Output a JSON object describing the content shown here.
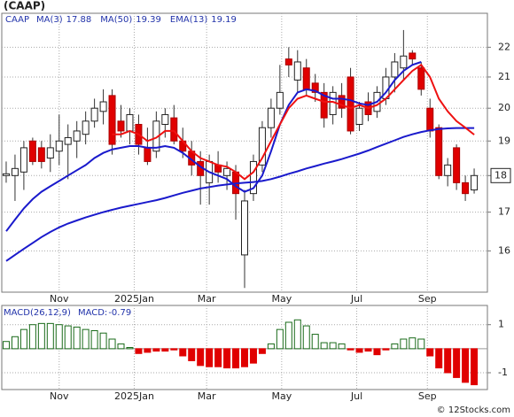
{
  "chart_data": [
    {
      "type": "candlestick",
      "title": "(CAAP)",
      "symbol": "CAAP",
      "log": true,
      "grid": true,
      "ylim": [
        15.0,
        23.2
      ],
      "yticks": [
        16,
        17,
        18,
        19,
        20,
        21,
        22
      ],
      "last_label": 18,
      "xlim": [
        -0.5,
        54.5
      ],
      "xticks": [
        {
          "value": 6,
          "label": "Nov"
        },
        {
          "value": 14.5,
          "label": "2025Jan"
        },
        {
          "value": 22.7,
          "label": "Mar"
        },
        {
          "value": 31.2,
          "label": "May"
        },
        {
          "value": 39.7,
          "label": "Jul"
        },
        {
          "value": 47.7,
          "label": "Sep"
        }
      ],
      "up_color": "#ffffff",
      "down_color": "#e00000",
      "open": [
        18.0,
        18.0,
        18.1,
        19.0,
        18.8,
        18.5,
        18.7,
        18.9,
        19.0,
        19.2,
        19.6,
        19.9,
        20.4,
        19.6,
        19.3,
        19.5,
        18.8,
        18.7,
        19.5,
        19.7,
        19.0,
        18.7,
        18.4,
        17.8,
        18.3,
        18.0,
        18.1,
        15.9,
        17.5,
        18.3,
        19.4,
        20.0,
        21.6,
        20.9,
        21.3,
        20.8,
        20.5,
        19.8,
        20.4,
        21.0,
        19.5,
        20.2,
        19.9,
        20.3,
        21.0,
        21.3,
        21.8,
        21.3,
        20.0,
        19.4,
        18.0,
        18.8,
        17.8,
        17.6
      ],
      "high": [
        18.4,
        18.6,
        19.0,
        19.1,
        19.0,
        19.2,
        19.8,
        19.5,
        19.6,
        19.9,
        20.3,
        20.6,
        20.6,
        20.1,
        20.0,
        19.8,
        19.4,
        19.9,
        20.0,
        20.1,
        19.4,
        19.0,
        18.7,
        18.6,
        18.7,
        18.4,
        18.3,
        17.6,
        18.6,
        19.6,
        20.3,
        21.4,
        22.0,
        21.9,
        21.6,
        21.1,
        20.8,
        20.7,
        20.8,
        21.3,
        20.2,
        20.5,
        20.7,
        21.3,
        21.8,
        22.6,
        21.9,
        21.5,
        20.3,
        19.5,
        18.5,
        18.9,
        18.0,
        18.2
      ],
      "low": [
        17.8,
        17.3,
        17.6,
        18.3,
        18.2,
        18.1,
        18.3,
        17.9,
        18.5,
        18.9,
        19.4,
        19.5,
        18.6,
        19.1,
        18.9,
        18.6,
        18.3,
        18.5,
        19.1,
        18.9,
        18.5,
        18.0,
        17.2,
        17.2,
        17.8,
        17.6,
        16.8,
        15.1,
        17.3,
        18.1,
        19.1,
        19.8,
        21.0,
        20.5,
        20.4,
        20.2,
        19.4,
        19.5,
        19.7,
        19.2,
        19.3,
        19.6,
        19.7,
        20.1,
        20.5,
        20.9,
        21.4,
        20.4,
        19.1,
        17.9,
        17.7,
        17.6,
        17.3,
        17.5
      ],
      "close": [
        18.05,
        18.2,
        18.8,
        18.4,
        18.4,
        18.8,
        19.0,
        19.1,
        19.3,
        19.6,
        20.0,
        20.2,
        18.9,
        19.3,
        19.8,
        18.9,
        18.4,
        19.6,
        19.8,
        19.0,
        18.7,
        18.3,
        18.0,
        18.4,
        18.1,
        18.2,
        17.5,
        17.3,
        18.4,
        19.4,
        20.0,
        20.5,
        21.4,
        21.5,
        20.6,
        20.5,
        19.7,
        20.5,
        20.0,
        19.3,
        20.0,
        19.8,
        20.5,
        21.0,
        21.5,
        21.7,
        21.6,
        20.6,
        19.3,
        18.0,
        18.3,
        17.8,
        17.5,
        18.0
      ],
      "series": [
        {
          "name": "MA(3)",
          "legend_value": 17.88,
          "color": "#1a1acc",
          "values": [
            16.5,
            16.8,
            17.1,
            17.35,
            17.55,
            17.7,
            17.85,
            18.0,
            18.15,
            18.3,
            18.5,
            18.65,
            18.75,
            18.8,
            18.85,
            18.85,
            18.8,
            18.8,
            18.85,
            18.8,
            18.65,
            18.45,
            18.25,
            18.1,
            18.0,
            17.9,
            17.7,
            17.55,
            17.65,
            18.0,
            18.7,
            19.5,
            20.1,
            20.5,
            20.6,
            20.55,
            20.4,
            20.3,
            20.3,
            20.25,
            20.15,
            20.1,
            20.2,
            20.5,
            20.9,
            21.2,
            21.4,
            21.5,
            null,
            null,
            null,
            null,
            null,
            null
          ]
        },
        {
          "name": "MA(50)",
          "legend_value": 19.39,
          "color": "#1a1acc",
          "values": [
            15.75,
            15.9,
            16.05,
            16.2,
            16.35,
            16.48,
            16.6,
            16.7,
            16.78,
            16.86,
            16.93,
            17.0,
            17.06,
            17.12,
            17.17,
            17.22,
            17.27,
            17.32,
            17.38,
            17.45,
            17.52,
            17.58,
            17.64,
            17.68,
            17.72,
            17.75,
            17.78,
            17.8,
            17.82,
            17.85,
            17.9,
            17.97,
            18.05,
            18.12,
            18.2,
            18.27,
            18.34,
            18.4,
            18.47,
            18.55,
            18.63,
            18.72,
            18.82,
            18.92,
            19.02,
            19.12,
            19.2,
            19.27,
            19.32,
            19.36,
            19.38,
            19.39,
            19.39,
            19.39
          ]
        },
        {
          "name": "EMA(13)",
          "legend_value": 19.19,
          "color": "#ee1111",
          "values": [
            null,
            null,
            null,
            null,
            null,
            null,
            null,
            null,
            null,
            null,
            null,
            null,
            19.2,
            19.2,
            19.3,
            19.2,
            19.0,
            19.1,
            19.3,
            19.3,
            19.0,
            18.7,
            18.5,
            18.4,
            18.3,
            18.25,
            18.1,
            17.9,
            18.1,
            18.5,
            19.0,
            19.5,
            20.0,
            20.3,
            20.4,
            20.3,
            20.2,
            20.2,
            20.1,
            20.0,
            20.1,
            20.0,
            20.1,
            20.3,
            20.6,
            20.9,
            21.2,
            21.4,
            21.0,
            20.3,
            19.9,
            19.6,
            19.4,
            19.19
          ]
        }
      ]
    },
    {
      "type": "bar",
      "title": "MACD(26,12,9)",
      "value_name": "MACD:",
      "value": -0.79,
      "grid": true,
      "ylim": [
        -1.7,
        1.8
      ],
      "yticks": [
        -1,
        1
      ],
      "xlim": [
        -0.5,
        54.5
      ],
      "xticks": [
        {
          "value": 6,
          "label": "Nov"
        },
        {
          "value": 14.5,
          "label": "2025Jan"
        },
        {
          "value": 22.7,
          "label": "Mar"
        },
        {
          "value": 31.2,
          "label": "May"
        },
        {
          "value": 39.7,
          "label": "Jul"
        },
        {
          "value": 47.7,
          "label": "Sep"
        }
      ],
      "up_color": "#1a6b1a",
      "down_color": "#e00000",
      "values": [
        0.3,
        0.5,
        0.8,
        1.0,
        1.05,
        1.05,
        1.0,
        0.95,
        0.9,
        0.8,
        0.75,
        0.65,
        0.4,
        0.2,
        0.05,
        -0.2,
        -0.15,
        -0.1,
        -0.1,
        -0.05,
        -0.3,
        -0.5,
        -0.7,
        -0.75,
        -0.75,
        -0.8,
        -0.8,
        -0.75,
        -0.6,
        -0.2,
        0.2,
        0.8,
        1.1,
        1.2,
        0.95,
        0.6,
        0.25,
        0.25,
        0.2,
        -0.05,
        -0.15,
        -0.1,
        -0.25,
        -0.05,
        0.2,
        0.4,
        0.45,
        0.4,
        -0.3,
        -0.8,
        -1.0,
        -1.2,
        -1.4,
        -1.5
      ]
    }
  ],
  "footer": "© 12Stocks.com"
}
